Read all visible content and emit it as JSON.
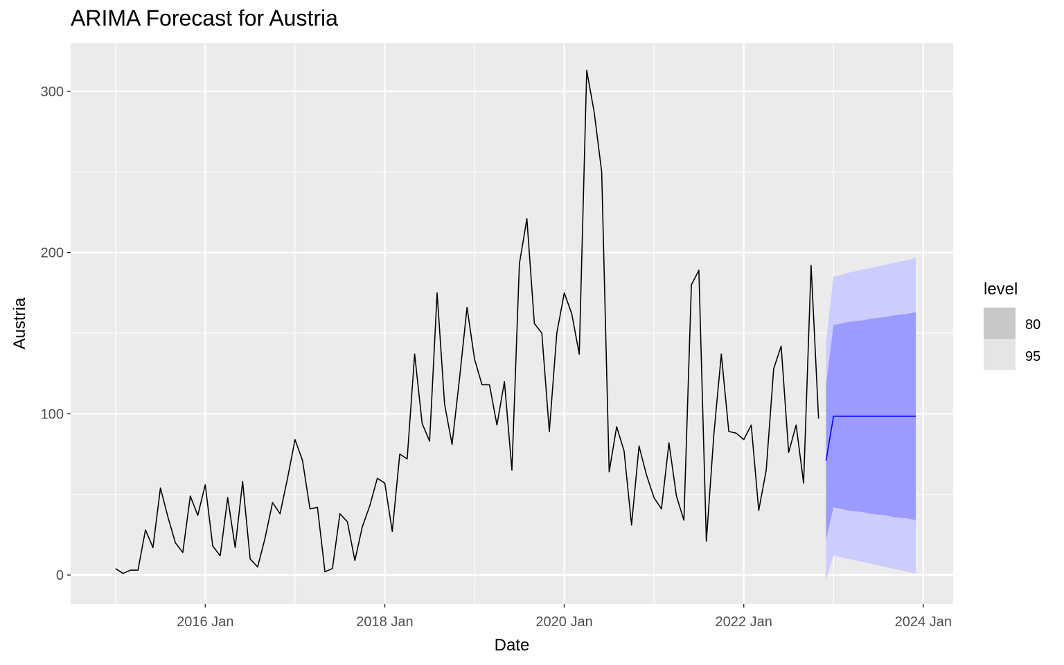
{
  "chart_data": {
    "type": "line",
    "title": "ARIMA Forecast for Austria",
    "xlabel": "Date",
    "ylabel": "Austria",
    "x_ticks": [
      "2016 Jan",
      "2018 Jan",
      "2020 Jan",
      "2022 Jan",
      "2024 Jan"
    ],
    "y_ticks": [
      "0",
      "100",
      "200",
      "300"
    ],
    "ylim": [
      -18,
      330
    ],
    "xlim": [
      "2014-07",
      "2024-05"
    ],
    "grid": true,
    "legend": {
      "title": "level",
      "entries": [
        "80",
        "95"
      ],
      "placement": "right"
    },
    "colors": {
      "panel": "#EBEBEB",
      "grid": "#FFFFFF",
      "history_line": "#000000",
      "forecast_line": "#0000FF",
      "band_80": "#9A9AFF",
      "band_95": "#CCCCFF",
      "legend_80": "#C8C8C8",
      "legend_95": "#E5E5E5"
    },
    "history": {
      "start": "2015-01",
      "frequency": "monthly",
      "values": [
        4,
        1,
        3,
        3,
        28,
        17,
        54,
        36,
        20,
        14,
        49,
        37,
        56,
        18,
        12,
        48,
        17,
        58,
        10,
        5,
        23,
        45,
        38,
        60,
        84,
        71,
        41,
        42,
        2,
        4,
        38,
        33,
        9,
        30,
        43,
        60,
        57,
        27,
        75,
        72,
        137,
        94,
        83,
        175,
        106,
        81,
        122,
        166,
        134,
        118,
        118,
        93,
        120,
        65,
        193,
        221,
        156,
        150,
        89,
        150,
        175,
        162,
        137,
        313,
        287,
        250,
        64,
        92,
        77,
        31,
        80,
        62,
        48,
        41,
        82,
        49,
        34,
        180,
        189,
        21,
        87,
        137,
        89,
        88,
        84,
        93,
        40,
        65,
        128,
        142,
        76,
        93,
        57,
        192,
        97
      ]
    },
    "forecast": {
      "start": "2023-01",
      "frequency": "monthly",
      "mean": [
        71,
        98.5,
        98.5,
        98.5,
        98.5,
        98.5,
        98.5,
        98.5,
        98.5,
        98.5,
        98.5,
        98.5,
        98.5
      ],
      "lo80": [
        22,
        42,
        41,
        40,
        39.5,
        39,
        38,
        37.5,
        37,
        36,
        35.5,
        35,
        34
      ],
      "hi80": [
        118,
        155,
        156,
        157,
        157.5,
        158,
        159,
        159.5,
        160,
        161,
        161.5,
        162,
        163
      ],
      "lo95": [
        -3,
        12,
        11,
        10,
        9,
        8,
        7,
        6,
        5,
        4,
        3,
        2,
        1
      ],
      "hi95": [
        144,
        185,
        186,
        187.5,
        188.5,
        189.5,
        190.5,
        191.5,
        192.5,
        193.5,
        194.5,
        195.5,
        197
      ]
    }
  }
}
